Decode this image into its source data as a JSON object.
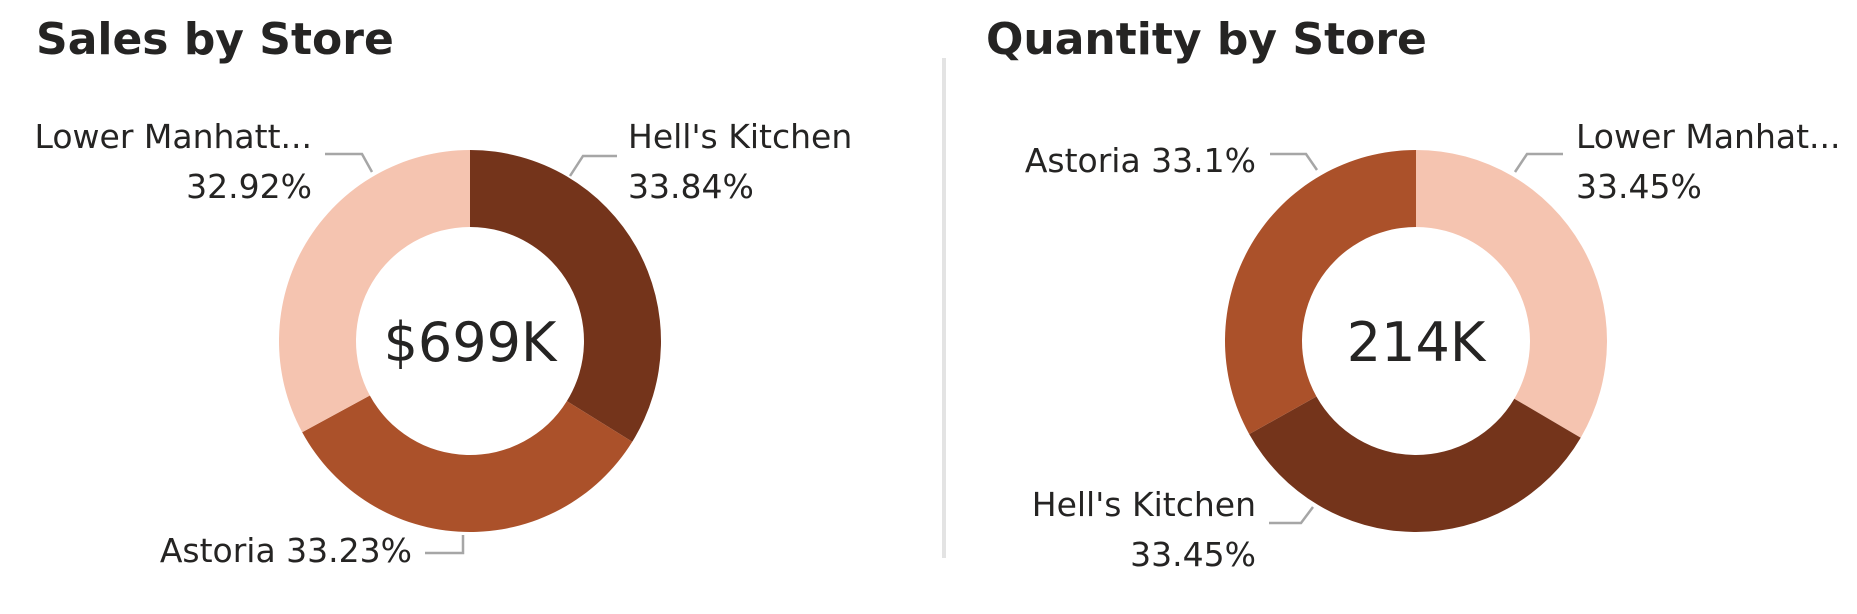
{
  "colors": {
    "Hell's Kitchen": "#74341b",
    "Astoria": "#ab512a",
    "Lower Manhattan": "#f5c4b0",
    "leader": "#a6a6a6",
    "divider": "#e3e3e3"
  },
  "chart_data": [
    {
      "type": "pie",
      "variant": "donut",
      "title": "Sales by Store",
      "center_label": "$699K",
      "slices": [
        {
          "name": "Hell's Kitchen",
          "label": "Hell's Kitchen",
          "value": 33.84,
          "display": "33.84%"
        },
        {
          "name": "Astoria",
          "label": "Astoria",
          "value": 33.23,
          "display": "33.23%"
        },
        {
          "name": "Lower Manhattan",
          "label": "Lower Manhatt...",
          "value": 32.92,
          "display": "32.92%"
        }
      ]
    },
    {
      "type": "pie",
      "variant": "donut",
      "title": "Quantity by Store",
      "center_label": "214K",
      "slices": [
        {
          "name": "Lower Manhattan",
          "label": "Lower Manhat...",
          "value": 33.45,
          "display": "33.45%"
        },
        {
          "name": "Hell's Kitchen",
          "label": "Hell's Kitchen",
          "value": 33.45,
          "display": "33.45%"
        },
        {
          "name": "Astoria",
          "label": "Astoria",
          "value": 33.1,
          "display": "33.1%"
        }
      ]
    }
  ]
}
